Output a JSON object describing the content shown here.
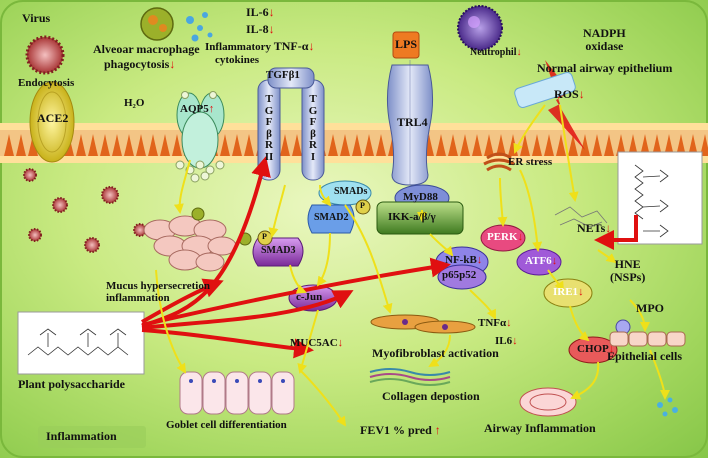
{
  "labels": {
    "virus": "Virus",
    "endocytosis": "Endocytosis",
    "ace2": "ACE2",
    "alveolar_macrophage": "Alveoar macrophage",
    "phagocytosis": "phagocytosis",
    "h2o": "H₂O",
    "aqp5": "AQP5",
    "il6_top": "IL-6",
    "il8": "IL-8",
    "tnfa_top": "TNF-α",
    "inflammatory_cytokines": "Inflammatory\ncytokines",
    "tgfb1": "TGFβ1",
    "tgfbr2": "TGFβRII",
    "tgfbr1": "TGFβRI",
    "smads": "SMADs",
    "smad2": "SMAD2",
    "smad3": "SMAD3",
    "p": "P",
    "lps": "LPS",
    "trl4": "TRL4",
    "myd88": "MyD88",
    "ikk": "IKK-a/β/γ",
    "nfkb": "NF-kB",
    "p65p52": "p65p52",
    "neutrophil": "Neutrophil",
    "nadph_oxidase": "NADPH\noxidase",
    "normal_airway_epithelium": "Normal airway epithelium",
    "ros": "ROS",
    "er_stress": "ER stress",
    "perk": "PERK",
    "atf6": "ATF6",
    "ire1": "IRE1",
    "chop": "CHOP",
    "nets": "NETs",
    "hne": "HNE\n(NSPs)",
    "mpo": "MPO",
    "epithelial_cells": "Epithelial cells",
    "airway_inflammation": "Airway Inflammation",
    "mucus": "Mucus hypersecretion\ninflammation",
    "cjun": "c-Jun",
    "muc5ac": "MUC5AC",
    "tnfa_low": "TNFα",
    "il6_low": "IL6",
    "myofibroblast": "Myofibroblast activation",
    "collagen": "Collagen depostion",
    "goblet": "Goblet cell differentiation",
    "fev1": "FEV1 % pred",
    "plant_poly": "Plant polysaccharide",
    "inflammation": "Inflammation",
    "arrow_down": "↓",
    "arrow_up": "↑"
  },
  "colors": {
    "bg_light": "#eaf7c0",
    "bg_dark": "#86c648",
    "membrane": "#f0c080",
    "red_arrow": "#e01010",
    "yellow_arrow": "#f2e21a",
    "receptor_blue": "#a8b6de",
    "purple": "#9b3fb5",
    "green_box": "#4d8a2a"
  }
}
